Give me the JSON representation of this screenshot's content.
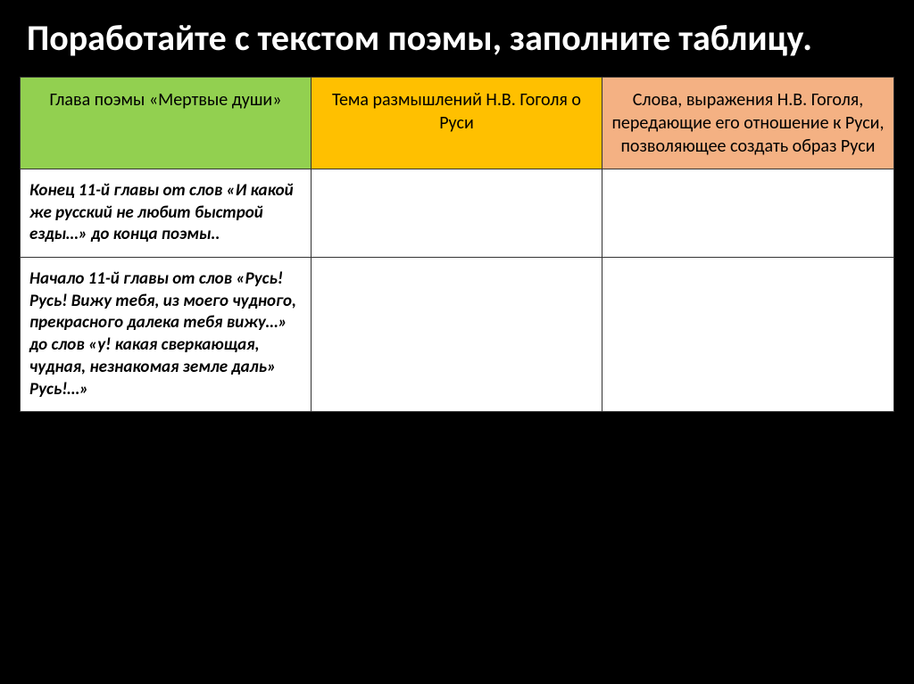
{
  "title": "Поработайте с текстом поэмы, заполните таблицу.",
  "table": {
    "headers": {
      "col1": "Глава поэмы «Мертвые души»",
      "col2": "Тема размышлений Н.В. Гоголя о Руси",
      "col3": "Слова, выражения Н.В. Гоголя, передающие его отношение к Руси, позволяющее создать образ Руси"
    },
    "header_colors": {
      "col1": "#92d050",
      "col2": "#ffc000",
      "col3": "#f4b183"
    },
    "rows": [
      {
        "col1": "Конец 11-й главы от слов «И какой же русский не любит быстрой езды…» до конца поэмы..",
        "col2": "",
        "col3": ""
      },
      {
        "col1": "Начало 11-й главы от слов «Русь! Русь! Вижу тебя,  из моего чудного, прекрасного далека тебя вижу…»  до слов «у! какая сверкающая, чудная, незнакомая земле  даль» Русь!…»",
        "col2": "",
        "col3": ""
      }
    ]
  }
}
